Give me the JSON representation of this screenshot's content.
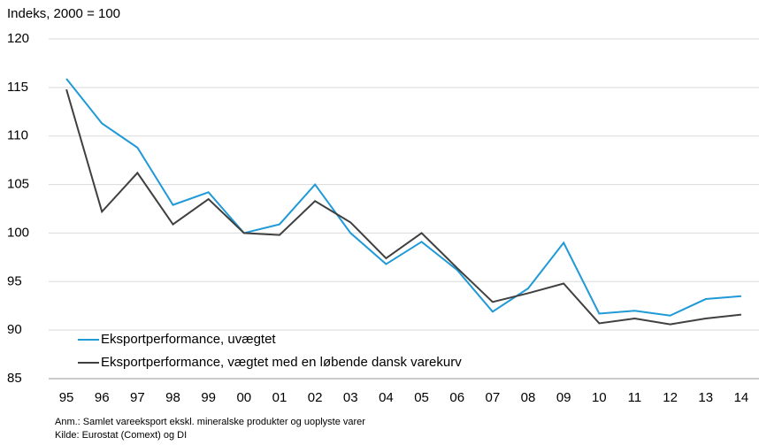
{
  "chart_data": {
    "type": "line",
    "y_axis_label": "Indeks, 2000 = 100",
    "categories": [
      "95",
      "96",
      "97",
      "98",
      "99",
      "00",
      "01",
      "02",
      "03",
      "04",
      "05",
      "06",
      "07",
      "08",
      "09",
      "10",
      "11",
      "12",
      "13",
      "14"
    ],
    "series": [
      {
        "name": "Eksportperformance, uvægtet",
        "color": "#1f9ad6",
        "values": [
          115.9,
          111.3,
          108.8,
          102.9,
          104.2,
          100,
          100.9,
          105,
          100,
          96.8,
          99.1,
          96.2,
          91.9,
          94.3,
          99,
          91.7,
          92,
          91.5,
          93.2,
          93.5
        ]
      },
      {
        "name": "Eksportperformance, vægtet med en løbende dansk varekurv",
        "color": "#404040",
        "values": [
          114.8,
          102.2,
          106.2,
          100.9,
          103.5,
          100,
          99.8,
          103.3,
          101.1,
          97.4,
          100,
          96.4,
          92.9,
          93.8,
          94.8,
          90.7,
          91.2,
          90.6,
          91.2,
          91.6
        ]
      }
    ],
    "ylim": [
      85,
      120
    ],
    "yticks": [
      85,
      90,
      95,
      100,
      105,
      110,
      115,
      120
    ],
    "grid": true,
    "legend": "lower left",
    "notes": [
      "Anm.: Samlet vareeksport ekskl. mineralske produkter og uoplyste varer",
      "Kilde: Eurostat (Comext) og DI"
    ]
  }
}
